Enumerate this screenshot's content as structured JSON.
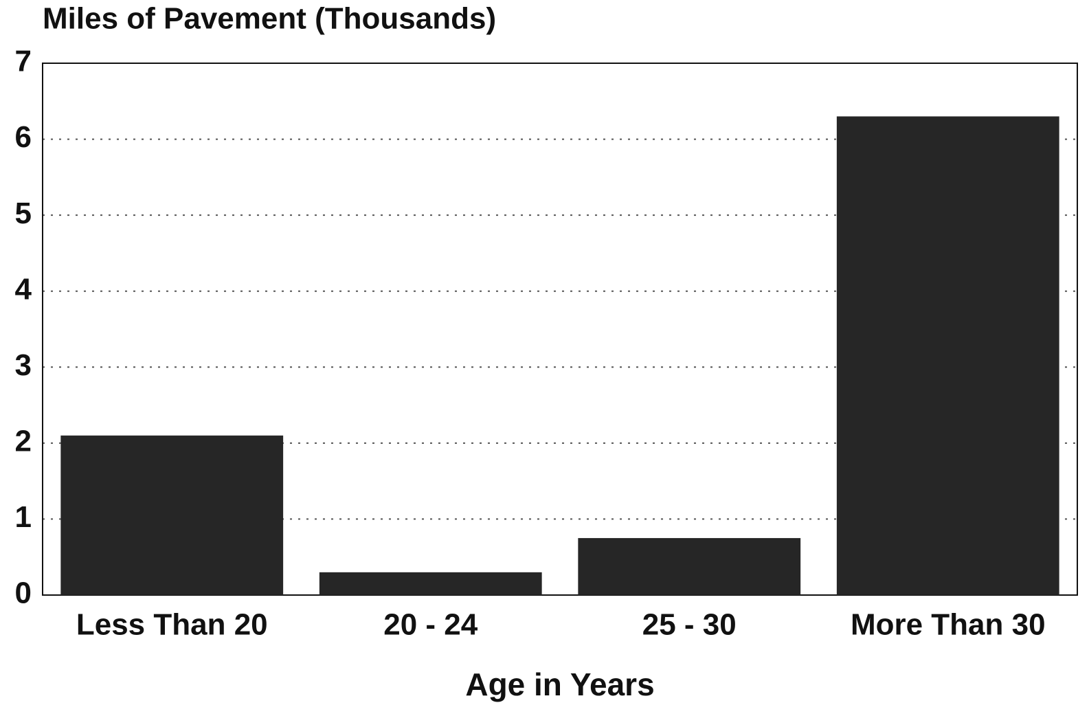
{
  "chart_data": {
    "type": "bar",
    "title": "Miles of Pavement (Thousands)",
    "x_label": "Age in Years",
    "categories": [
      "Less Than 20",
      "20 - 24",
      "25 - 30",
      "More Than 30"
    ],
    "values": [
      2.1,
      0.3,
      0.75,
      6.3
    ],
    "color": "#262626",
    "ylim": [
      0,
      7
    ],
    "yticks": [
      0,
      1,
      2,
      3,
      4,
      5,
      6,
      7
    ],
    "grid": true
  }
}
